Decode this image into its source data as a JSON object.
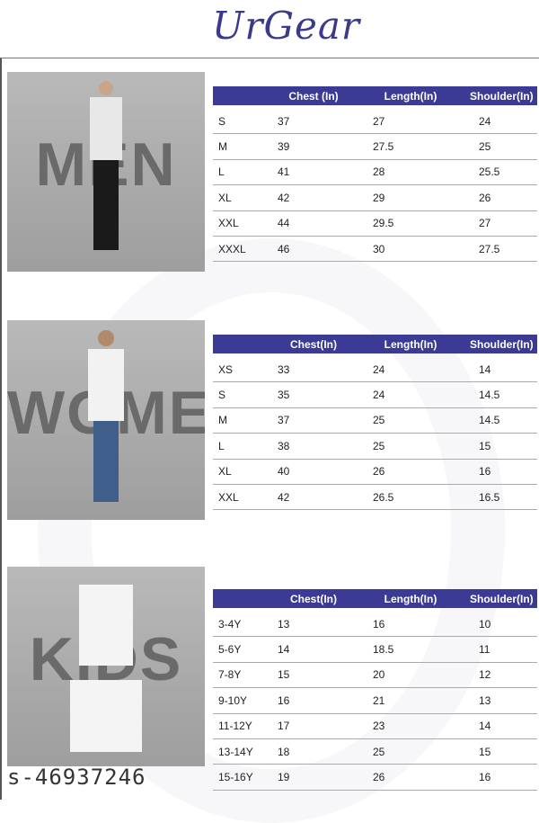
{
  "brand": "UrGear",
  "watermark": "s-46937246",
  "accent": "#3b3b96",
  "sections": [
    {
      "label": "MEN",
      "headers": [
        "",
        "Chest  (In)",
        "Length(In)",
        "Shoulder(In)"
      ],
      "rows": [
        [
          "S",
          "37",
          "27",
          "24"
        ],
        [
          "M",
          "39",
          "27.5",
          "25"
        ],
        [
          "L",
          "41",
          "28",
          "25.5"
        ],
        [
          "XL",
          "42",
          "29",
          "26"
        ],
        [
          "XXL",
          "44",
          "29.5",
          "27"
        ],
        [
          "XXXL",
          "46",
          "30",
          "27.5"
        ]
      ]
    },
    {
      "label": "WOMEN",
      "headers": [
        "",
        "Chest(In)",
        "Length(In)",
        "Shoulder(In)"
      ],
      "rows": [
        [
          "XS",
          "33",
          "24",
          "14"
        ],
        [
          "S",
          "35",
          "24",
          "14.5"
        ],
        [
          "M",
          "37",
          "25",
          "14.5"
        ],
        [
          "L",
          "38",
          "25",
          "15"
        ],
        [
          "XL",
          "40",
          "26",
          "16"
        ],
        [
          "XXL",
          "42",
          "26.5",
          "16.5"
        ]
      ]
    },
    {
      "label": "KIDS",
      "headers": [
        "",
        "Chest(In)",
        "Length(In)",
        "Shoulder(In)"
      ],
      "rows": [
        [
          "3-4Y",
          "13",
          "16",
          "10"
        ],
        [
          "5-6Y",
          "14",
          "18.5",
          "11"
        ],
        [
          "7-8Y",
          "15",
          "20",
          "12"
        ],
        [
          "9-10Y",
          "16",
          "21",
          "13"
        ],
        [
          "11-12Y",
          "17",
          "23",
          "14"
        ],
        [
          "13-14Y",
          "18",
          "25",
          "15"
        ],
        [
          "15-16Y",
          "19",
          "26",
          "16"
        ]
      ]
    }
  ]
}
